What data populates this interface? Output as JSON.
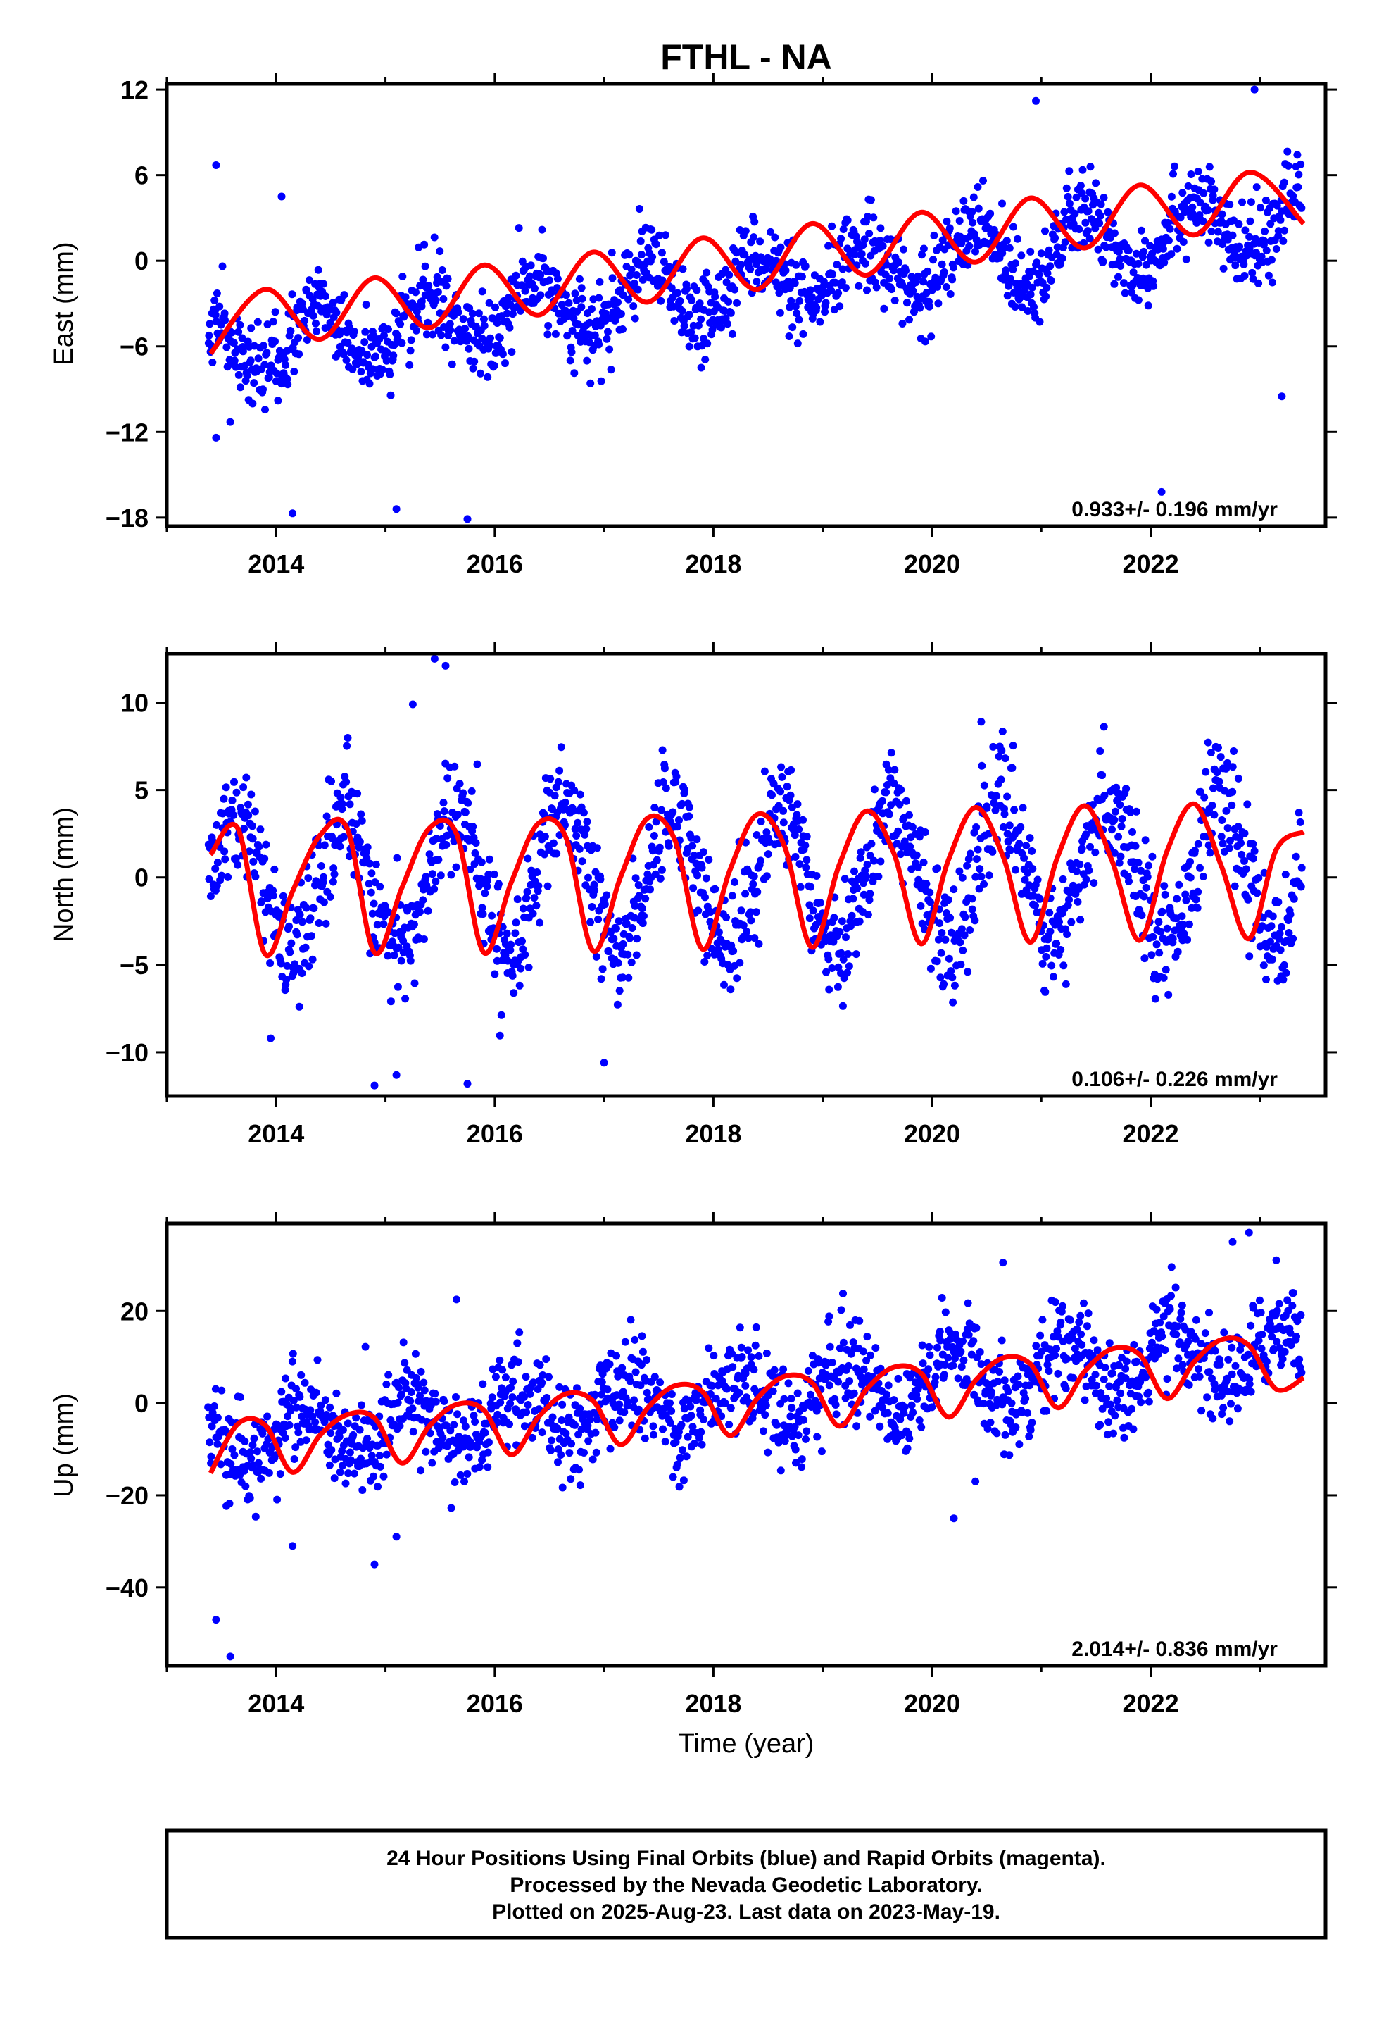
{
  "title": "FTHL - NA",
  "xlabel": "Time (year)",
  "footer": {
    "line1": "24 Hour Positions Using Final Orbits (blue) and Rapid Orbits (magenta).",
    "line2": "Processed by the Nevada Geodetic Laboratory.",
    "line3": "Plotted on 2025-Aug-23. Last data on 2023-May-19."
  },
  "colors": {
    "points": "#0000ff",
    "fit": "#ff0000",
    "frame": "#000000"
  },
  "chart_data": [
    {
      "type": "scatter",
      "panel": "east",
      "ylabel": "East (mm)",
      "rate_text": "0.933+/- 0.196 mm/yr",
      "xlim": [
        2013.0,
        2023.6
      ],
      "ylim": [
        -18.6,
        12.4
      ],
      "xticks": [
        2014,
        2016,
        2018,
        2020,
        2022
      ],
      "yticks": [
        12,
        6,
        0,
        -6,
        -12,
        -18
      ],
      "ytick_labels": [
        "12",
        "6",
        "0",
        "−6",
        "−12",
        "−18"
      ],
      "model": {
        "start": 2013.38,
        "end": 2023.38,
        "y0": -6.3,
        "rate": 0.933,
        "amp": 2.1,
        "phase": 1.55,
        "scatter_sd": 1.45
      },
      "fit_line": {
        "x": [
          2013.4,
          2013.9,
          2014.4,
          2014.9,
          2015.4,
          2015.9,
          2016.4,
          2016.9,
          2017.4,
          2017.9,
          2018.4,
          2018.9,
          2019.4,
          2019.9,
          2020.4,
          2020.9,
          2021.4,
          2021.9,
          2022.4,
          2022.9,
          2023.4
        ],
        "y": [
          -6.5,
          -2.0,
          -5.5,
          -1.2,
          -4.7,
          -0.3,
          -3.8,
          0.6,
          -2.9,
          1.6,
          -2.0,
          2.6,
          -1.0,
          3.4,
          -0.1,
          4.4,
          0.9,
          5.3,
          1.8,
          6.2,
          2.6
        ]
      },
      "outliers": [
        {
          "x": 2013.45,
          "y": 6.7
        },
        {
          "x": 2013.45,
          "y": -12.4
        },
        {
          "x": 2013.58,
          "y": -11.3
        },
        {
          "x": 2014.05,
          "y": 4.5
        },
        {
          "x": 2014.15,
          "y": -17.7
        },
        {
          "x": 2015.1,
          "y": -17.4
        },
        {
          "x": 2015.75,
          "y": -18.1
        },
        {
          "x": 2020.95,
          "y": 11.2
        },
        {
          "x": 2022.1,
          "y": -16.2
        },
        {
          "x": 2022.95,
          "y": 12.0
        },
        {
          "x": 2023.2,
          "y": -9.5
        }
      ]
    },
    {
      "type": "scatter",
      "panel": "north",
      "ylabel": "North (mm)",
      "rate_text": "0.106+/- 0.226 mm/yr",
      "xlim": [
        2013.0,
        2023.6
      ],
      "ylim": [
        -12.5,
        12.8
      ],
      "xticks": [
        2014,
        2016,
        2018,
        2020,
        2022
      ],
      "yticks": [
        10,
        5,
        0,
        -5,
        -10
      ],
      "ytick_labels": [
        "10",
        "5",
        "0",
        "−5",
        "−10"
      ],
      "model": {
        "start": 2013.38,
        "end": 2023.38,
        "y0": -0.5,
        "rate": 0.106,
        "amp": 3.9,
        "phase": 0.0,
        "scatter_sd": 1.6
      },
      "fit_line": {
        "x": [
          2013.4,
          2013.65,
          2013.9,
          2014.15,
          2014.4,
          2014.65,
          2014.9,
          2015.15,
          2015.4,
          2015.65,
          2015.9,
          2016.15,
          2016.4,
          2016.65,
          2016.9,
          2017.15,
          2017.4,
          2017.65,
          2017.9,
          2018.15,
          2018.4,
          2018.65,
          2018.9,
          2019.15,
          2019.4,
          2019.65,
          2019.9,
          2020.15,
          2020.4,
          2020.65,
          2020.9,
          2021.15,
          2021.4,
          2021.65,
          2021.9,
          2022.15,
          2022.4,
          2022.65,
          2022.9,
          2023.15,
          2023.4
        ],
        "y": [
          1.3,
          2.8,
          -4.4,
          -0.8,
          2.4,
          2.8,
          -4.3,
          -0.6,
          2.8,
          2.5,
          -4.3,
          -0.3,
          3.1,
          2.3,
          -4.2,
          0.0,
          3.4,
          2.1,
          -4.1,
          0.4,
          3.6,
          1.8,
          -4.0,
          0.7,
          3.8,
          1.4,
          -3.8,
          1.0,
          4.0,
          1.2,
          -3.7,
          1.2,
          4.1,
          0.9,
          -3.6,
          1.5,
          4.2,
          0.6,
          -3.5,
          1.6,
          2.6
        ]
      },
      "outliers": [
        {
          "x": 2015.45,
          "y": 12.5
        },
        {
          "x": 2015.55,
          "y": 12.1
        },
        {
          "x": 2015.25,
          "y": 9.9
        },
        {
          "x": 2014.9,
          "y": -11.9
        },
        {
          "x": 2015.1,
          "y": -11.3
        },
        {
          "x": 2015.75,
          "y": -11.8
        },
        {
          "x": 2017.0,
          "y": -10.6
        },
        {
          "x": 2020.45,
          "y": 8.9
        },
        {
          "x": 2013.95,
          "y": -9.2
        }
      ]
    },
    {
      "type": "scatter",
      "panel": "up",
      "ylabel": "Up (mm)",
      "rate_text": "2.014+/- 0.836 mm/yr",
      "xlim": [
        2013.0,
        2023.6
      ],
      "ylim": [
        -57.0,
        39.0
      ],
      "xticks": [
        2014,
        2016,
        2018,
        2020,
        2022
      ],
      "yticks": [
        20,
        0,
        -20,
        -40
      ],
      "ytick_labels": [
        "20",
        "0",
        "−20",
        "−40"
      ],
      "model": {
        "start": 2013.38,
        "end": 2023.38,
        "y0": -8.5,
        "rate": 2.014,
        "amp": 5.5,
        "phase": 2.6,
        "scatter_sd": 5.2
      },
      "fit_line": {
        "x": [
          2013.4,
          2013.65,
          2013.9,
          2014.15,
          2014.4,
          2014.65,
          2014.9,
          2015.15,
          2015.4,
          2015.65,
          2015.9,
          2016.15,
          2016.4,
          2016.65,
          2016.9,
          2017.15,
          2017.4,
          2017.65,
          2017.9,
          2018.15,
          2018.4,
          2018.65,
          2018.9,
          2019.15,
          2019.4,
          2019.65,
          2019.9,
          2020.15,
          2020.4,
          2020.65,
          2020.9,
          2021.15,
          2021.4,
          2021.65,
          2021.9,
          2022.15,
          2022.4,
          2022.65,
          2022.9,
          2023.15,
          2023.4
        ],
        "y": [
          -15.2,
          -4.5,
          -4.8,
          -15.0,
          -7.0,
          -2.5,
          -3.2,
          -13.0,
          -5.0,
          -0.3,
          -1.5,
          -11.2,
          -3.0,
          2.0,
          0.5,
          -9.0,
          -1.0,
          3.8,
          2.5,
          -7.0,
          1.0,
          5.8,
          4.5,
          -5.0,
          3.0,
          7.8,
          6.5,
          -3.0,
          5.0,
          9.8,
          8.5,
          -1.0,
          7.0,
          11.8,
          10.5,
          1.0,
          9.0,
          13.8,
          12.5,
          3.0,
          5.5
        ]
      },
      "outliers": [
        {
          "x": 2013.45,
          "y": -47.0
        },
        {
          "x": 2013.58,
          "y": -55.0
        },
        {
          "x": 2014.9,
          "y": -35.0
        },
        {
          "x": 2014.15,
          "y": -31.0
        },
        {
          "x": 2015.1,
          "y": -29.0
        },
        {
          "x": 2015.65,
          "y": 22.5
        },
        {
          "x": 2022.9,
          "y": 37.0
        },
        {
          "x": 2023.15,
          "y": 31.0
        },
        {
          "x": 2020.65,
          "y": 30.5
        },
        {
          "x": 2022.75,
          "y": 35.0
        },
        {
          "x": 2020.2,
          "y": -25.0
        }
      ]
    }
  ]
}
